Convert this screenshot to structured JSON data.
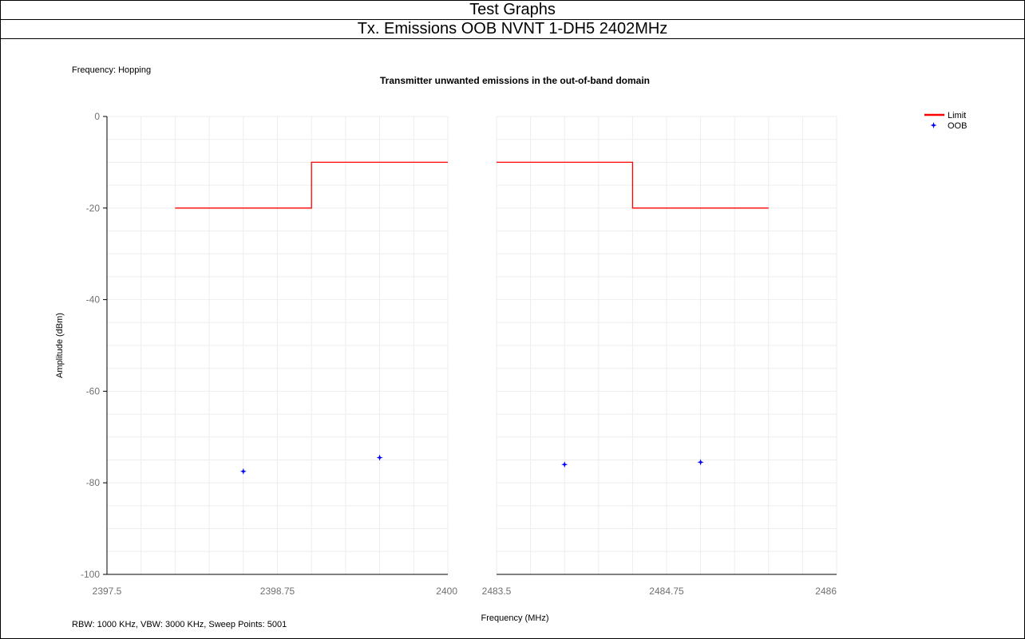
{
  "header": {
    "title": "Test Graphs",
    "subtitle": "Tx. Emissions OOB NVNT 1-DH5 2402MHz"
  },
  "chart_data": {
    "type": "scatter",
    "title": "Transmitter unwanted emissions in the out-of-band domain",
    "info_top": "Frequency: Hopping",
    "info_bottom": "RBW: 1000 KHz,  VBW: 3000 KHz,  Sweep Points: 5001",
    "xlabel": "Frequency (MHz)",
    "ylabel": "Amplitude (dBm)",
    "ylim": [
      -100,
      0
    ],
    "y_ticks": [
      "0",
      "-20",
      "-40",
      "-60",
      "-80",
      "-100"
    ],
    "grid": true,
    "legend_position": "top-right",
    "legend": [
      {
        "name": "Limit",
        "color": "#ff0000",
        "marker": "line"
      },
      {
        "name": "OOB",
        "color": "#0000ff",
        "marker": "star"
      }
    ],
    "panels": [
      {
        "xlim": [
          2397.5,
          2400
        ],
        "x_ticks": [
          "2397.5",
          "2398.75",
          "2400"
        ],
        "limit": [
          [
            2398.0,
            -20
          ],
          [
            2399.0,
            -20
          ],
          [
            2399.0,
            -10
          ],
          [
            2400.0,
            -10
          ]
        ],
        "oob": [
          [
            2398.5,
            -77.5
          ],
          [
            2399.5,
            -74.5
          ]
        ]
      },
      {
        "xlim": [
          2483.5,
          2486
        ],
        "x_ticks": [
          "2483.5",
          "2484.75",
          "2486"
        ],
        "limit": [
          [
            2483.5,
            -10
          ],
          [
            2484.5,
            -10
          ],
          [
            2484.5,
            -20
          ],
          [
            2485.5,
            -20
          ]
        ],
        "oob": [
          [
            2484.0,
            -76.0
          ],
          [
            2485.0,
            -75.5
          ]
        ]
      }
    ]
  }
}
